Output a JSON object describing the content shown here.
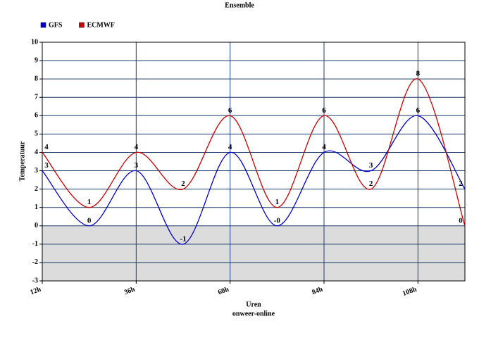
{
  "chart_data": {
    "type": "line",
    "title": "Ensemble",
    "x_label": "Uren",
    "subtitle": "onweer-online",
    "y_label": "Temperatuur",
    "x": [
      12,
      24,
      36,
      48,
      60,
      72,
      84,
      96,
      108,
      120
    ],
    "series": [
      {
        "name": "GFS",
        "color": "#0000cc",
        "values": [
          3,
          0,
          3,
          -1,
          4,
          0,
          4,
          3,
          6,
          2
        ],
        "value_labels": [
          "3",
          "0",
          "3",
          "-1",
          "4",
          "-0",
          "4",
          "3",
          "6",
          "2"
        ]
      },
      {
        "name": "ECMWF",
        "color": "#cc0000",
        "values": [
          4,
          1,
          4,
          2,
          6,
          1,
          6,
          2,
          8,
          0
        ]
      }
    ],
    "xlim": [
      12,
      120
    ],
    "xticks": [
      {
        "value": 12,
        "label": "12h"
      },
      {
        "value": 36,
        "label": "36h"
      },
      {
        "value": 60,
        "label": "60h"
      },
      {
        "value": 84,
        "label": "84h"
      },
      {
        "value": 108,
        "label": "108h"
      }
    ],
    "ylim": [
      -3,
      10
    ],
    "yticks": [
      -3,
      -2,
      -1,
      0,
      1,
      2,
      3,
      4,
      5,
      6,
      7,
      8,
      9,
      10
    ],
    "grid": true,
    "legend": "top-left",
    "negative_shade": "#dcdcdc",
    "grid_color": "#1f3f6f"
  }
}
